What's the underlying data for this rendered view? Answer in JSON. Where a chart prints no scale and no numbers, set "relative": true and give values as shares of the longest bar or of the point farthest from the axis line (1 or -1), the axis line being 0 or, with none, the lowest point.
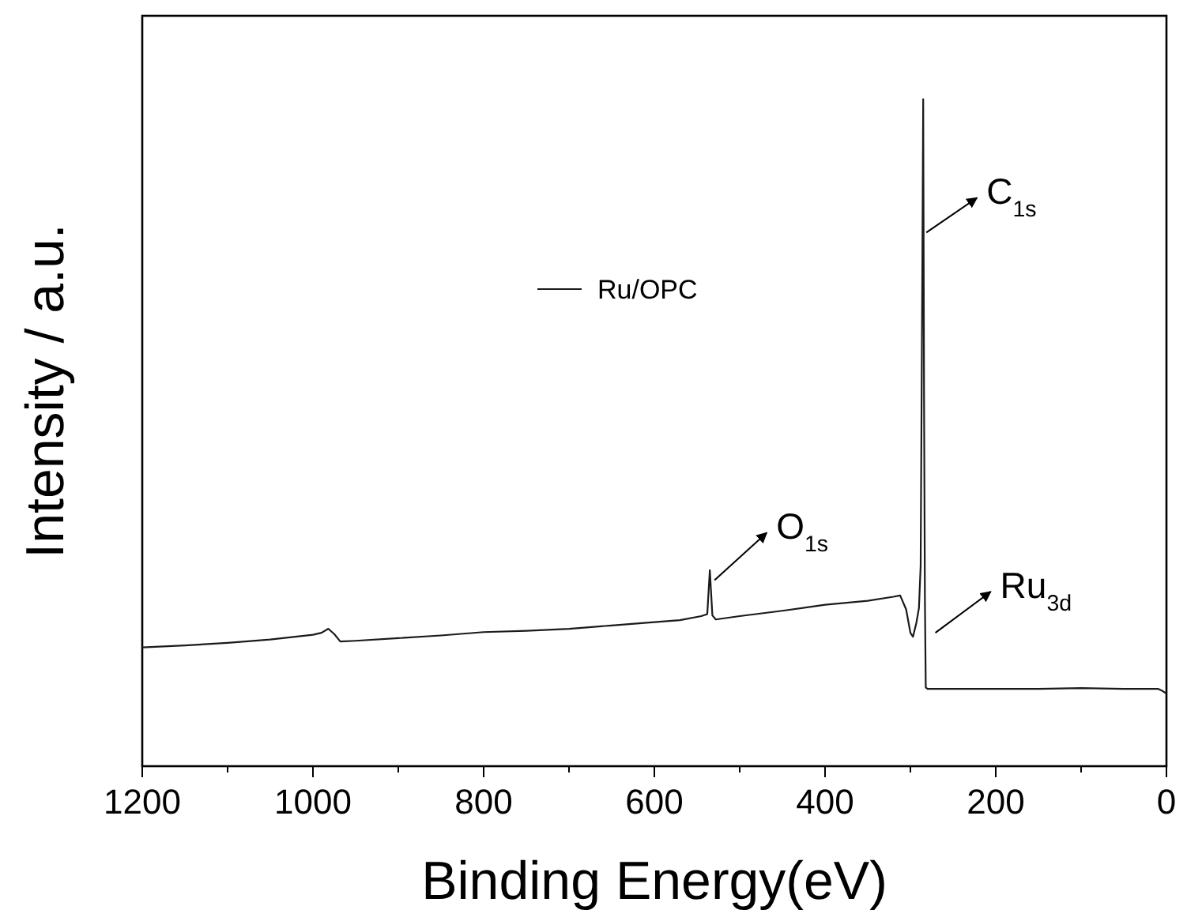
{
  "chart_data": {
    "type": "line",
    "relative": true,
    "xlabel": "Binding Energy(eV)",
    "ylabel": "Intensity / a.u.",
    "xlim": [
      1200,
      0
    ],
    "xticks": [
      1200,
      {
        "value": 1100,
        "label": null
      },
      1000,
      {
        "value": 900,
        "label": null
      },
      800,
      {
        "value": 700,
        "label": null
      },
      600,
      {
        "value": 500,
        "label": null
      },
      400,
      {
        "value": 300,
        "label": null
      },
      200,
      {
        "value": 100,
        "label": null
      },
      0
    ],
    "series": [
      {
        "name": "Ru/OPC",
        "color": "#1a1a1a",
        "x": [
          1200,
          1150,
          1100,
          1050,
          1000,
          990,
          982,
          975,
          968,
          950,
          900,
          850,
          800,
          750,
          700,
          650,
          600,
          570,
          545,
          538,
          535,
          532,
          528,
          500,
          450,
          400,
          350,
          320,
          312,
          305,
          300,
          297,
          293,
          290,
          288,
          286,
          285,
          284,
          283,
          282,
          280,
          250,
          200,
          150,
          100,
          50,
          10,
          5,
          0
        ],
        "values": [
          0.178,
          0.181,
          0.185,
          0.19,
          0.197,
          0.2,
          0.206,
          0.198,
          0.187,
          0.188,
          0.192,
          0.196,
          0.201,
          0.203,
          0.206,
          0.211,
          0.216,
          0.219,
          0.225,
          0.228,
          0.294,
          0.226,
          0.22,
          0.225,
          0.233,
          0.242,
          0.248,
          0.254,
          0.256,
          0.235,
          0.2,
          0.194,
          0.215,
          0.237,
          0.3,
          0.75,
          1.0,
          0.55,
          0.25,
          0.118,
          0.116,
          0.116,
          0.116,
          0.116,
          0.117,
          0.116,
          0.116,
          0.113,
          0.109
        ]
      }
    ],
    "legend": "top left",
    "line_style": "solid",
    "marker": "none",
    "annotations": [
      {
        "text": "C$_{1s}$",
        "x": 285,
        "y": 0.8
      },
      {
        "text": "O$_{1s}$",
        "x": 535,
        "y": 0.26
      },
      {
        "text": "Ru$_{3d}$",
        "x": 280,
        "y": 0.2
      }
    ]
  }
}
